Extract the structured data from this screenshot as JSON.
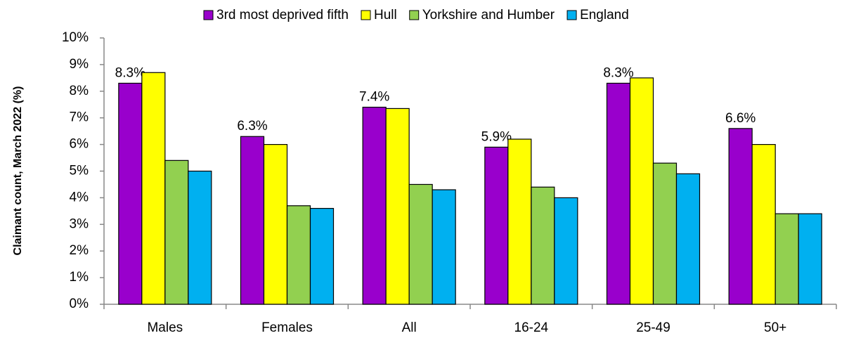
{
  "chart_data": {
    "type": "bar",
    "ylabel": "Claimant count, March 2022 (%)",
    "categories": [
      "Males",
      "Females",
      "All",
      "16-24",
      "25-49",
      "50+"
    ],
    "series": [
      {
        "name": "3rd most deprived fifth",
        "color": "#9900cc",
        "values": [
          8.3,
          6.3,
          7.4,
          5.9,
          8.3,
          6.6
        ],
        "value_labels": [
          "8.3%",
          "6.3%",
          "7.4%",
          "5.9%",
          "8.3%",
          "6.6%"
        ]
      },
      {
        "name": "Hull",
        "color": "#ffff00",
        "values": [
          8.7,
          6.0,
          7.35,
          6.2,
          8.5,
          6.0
        ]
      },
      {
        "name": "Yorkshire and Humber",
        "color": "#92d050",
        "values": [
          5.4,
          3.7,
          4.5,
          4.4,
          5.3,
          3.4
        ]
      },
      {
        "name": "England",
        "color": "#00b0f0",
        "values": [
          5.0,
          3.6,
          4.3,
          4.0,
          4.9,
          3.4
        ]
      }
    ],
    "ylim": [
      0,
      10
    ],
    "yticks": [
      {
        "value": 0,
        "label": "0%"
      },
      {
        "value": 1,
        "label": "1%"
      },
      {
        "value": 2,
        "label": "2%"
      },
      {
        "value": 3,
        "label": "3%"
      },
      {
        "value": 4,
        "label": "4%"
      },
      {
        "value": 5,
        "label": "5%"
      },
      {
        "value": 6,
        "label": "6%"
      },
      {
        "value": 7,
        "label": "7%"
      },
      {
        "value": 8,
        "label": "8%"
      },
      {
        "value": 9,
        "label": "9%"
      },
      {
        "value": 10,
        "label": "10%"
      }
    ],
    "grid": false,
    "legend": "top"
  }
}
